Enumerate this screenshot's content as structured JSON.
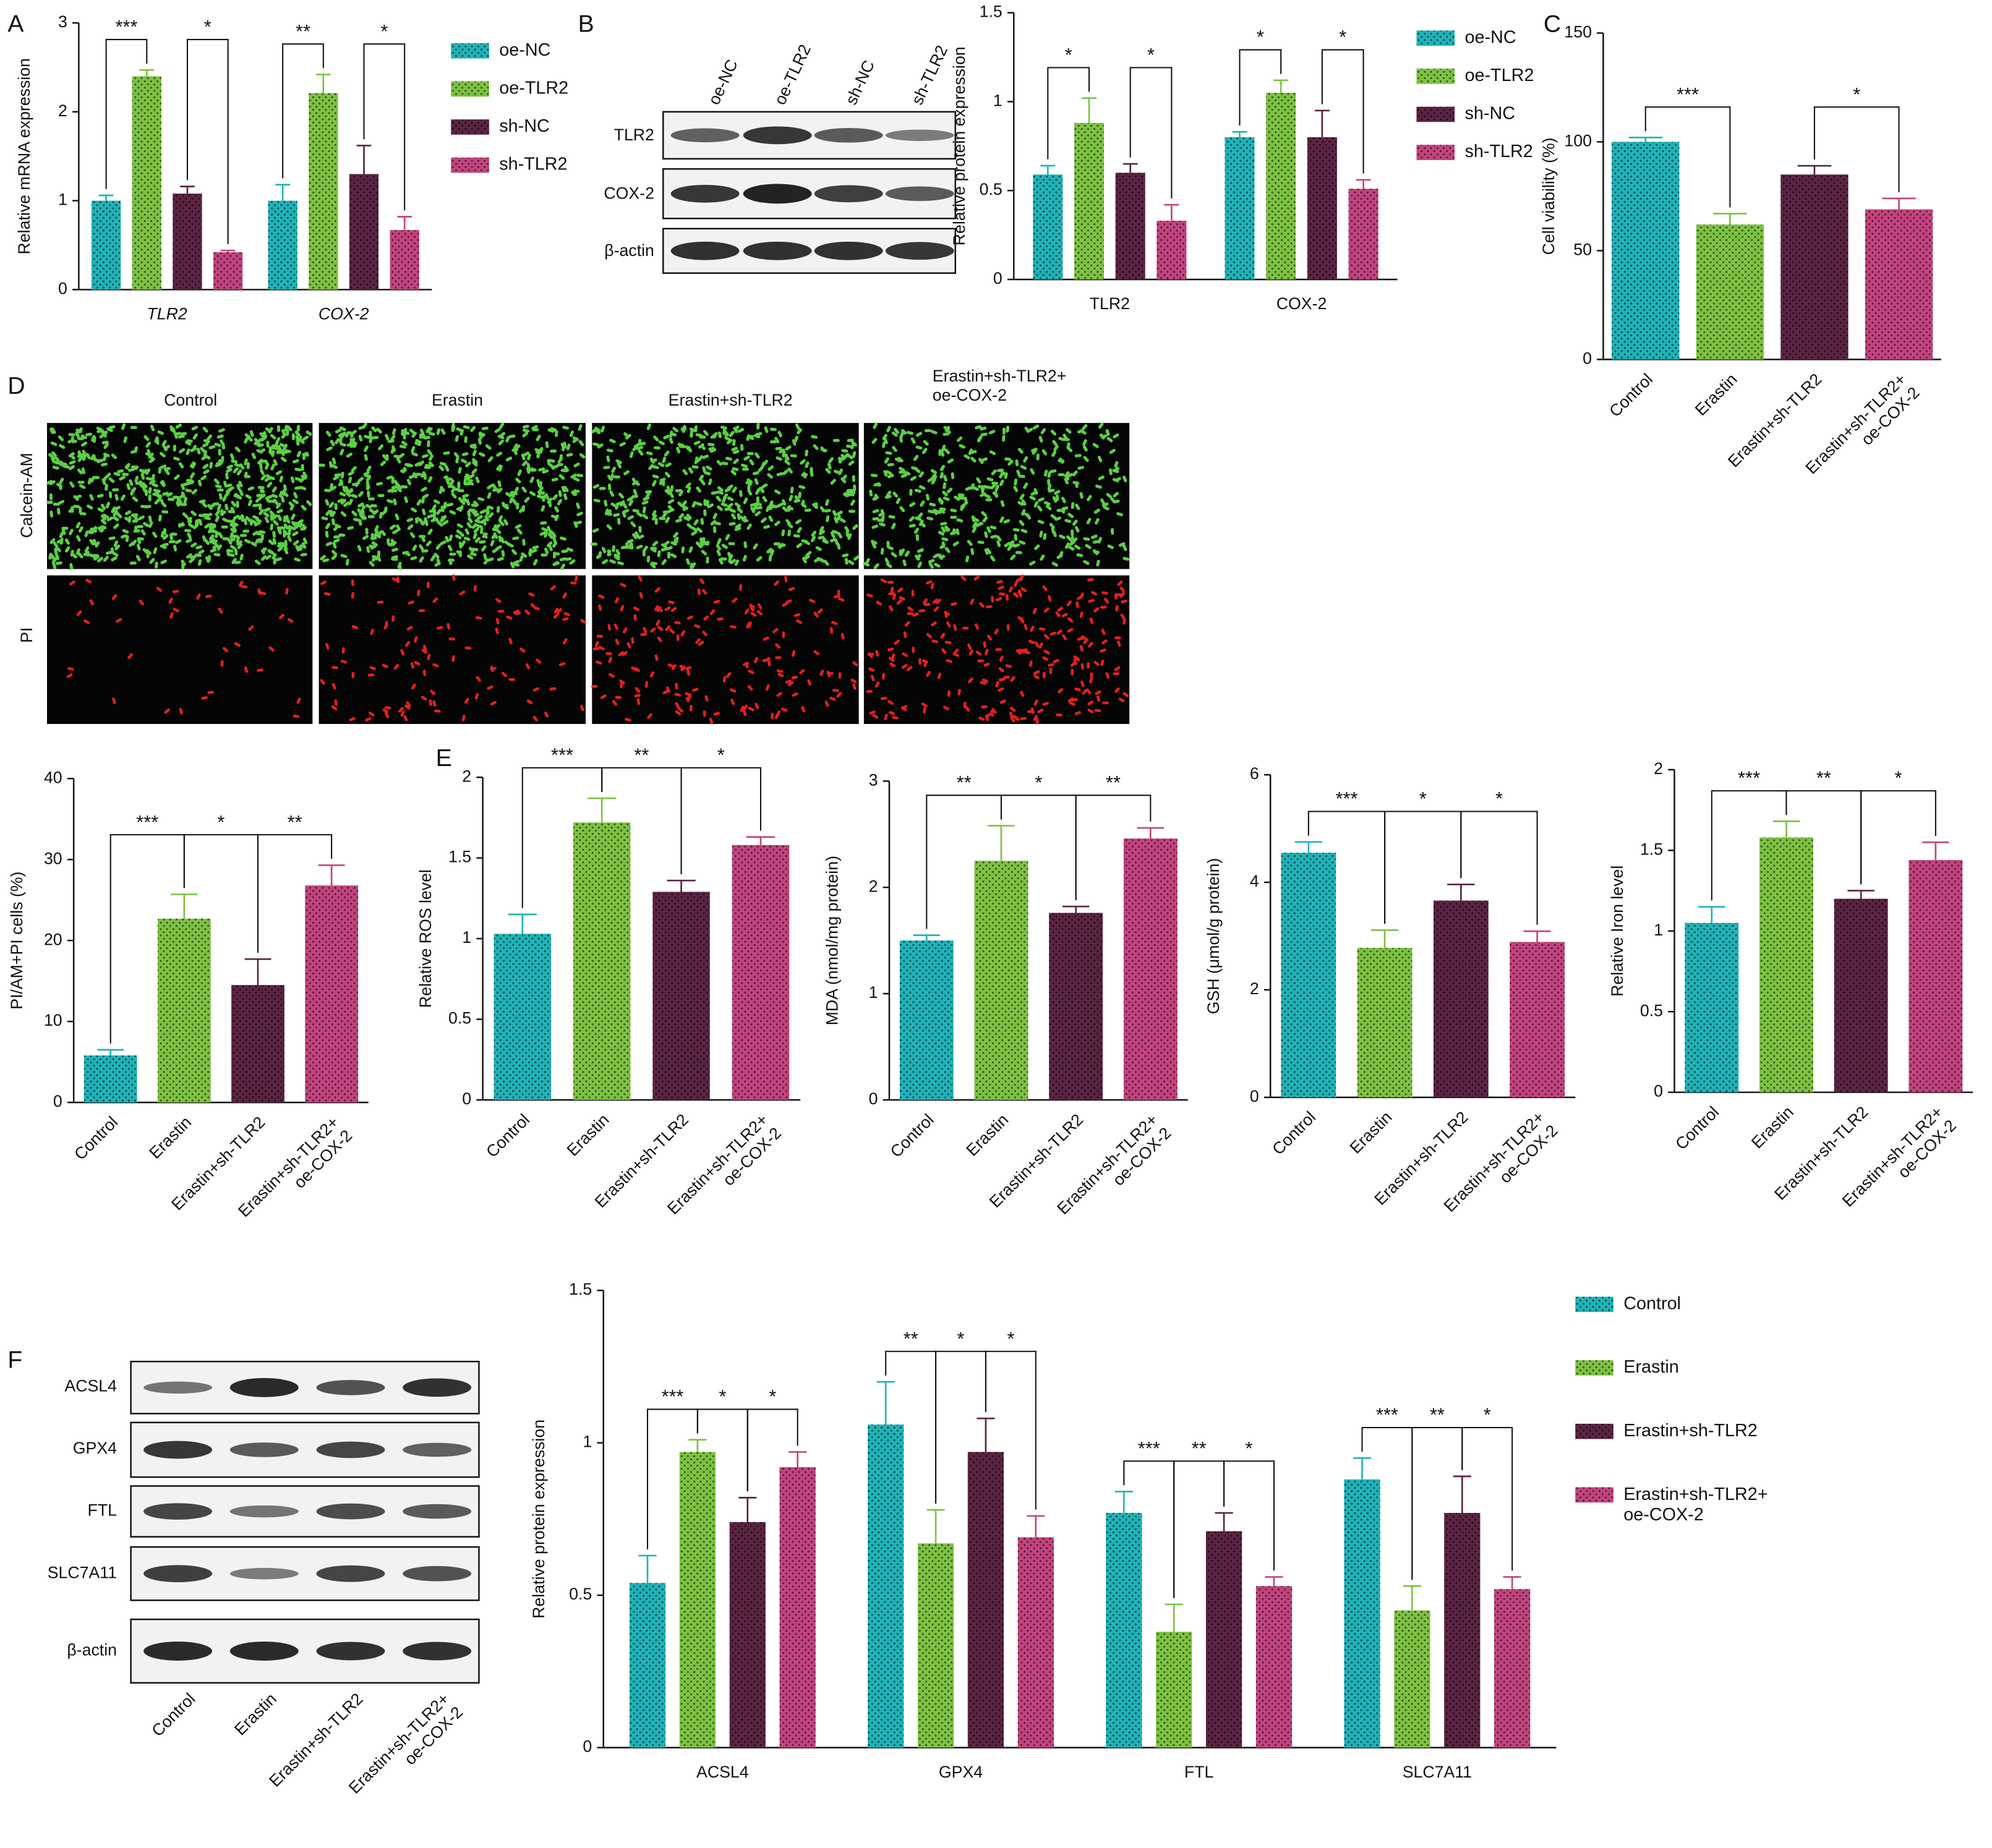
{
  "panel_labels": [
    "A",
    "B",
    "C",
    "D",
    "E",
    "F"
  ],
  "blot_b": {
    "lanes": [
      "oe-NC",
      "oe-TLR2",
      "sh-NC",
      "sh-TLR2"
    ],
    "rows": [
      "TLR2",
      "COX-2",
      "β-actin"
    ]
  },
  "images_d": {
    "columns": [
      "Control",
      "Erastin",
      "Erastin+sh-TLR2",
      "Erastin+sh-TLR2+\noe-COX-2"
    ],
    "rows": [
      "Calcein-AM",
      "PI"
    ]
  },
  "blot_f": {
    "lanes": [
      "Control",
      "Erastin",
      "Erastin+sh-TLR2",
      "Erastin+sh-TLR2+\noe-COX-2"
    ],
    "rows": [
      "ACSL4",
      "GPX4",
      "FTL",
      "SLC7A11",
      "β-actin"
    ]
  },
  "chart_data": [
    {
      "type": "bar",
      "y_label": "Relative mRNA expression",
      "categories": [
        "TLR2",
        "COX-2"
      ],
      "italic_categories": true,
      "series": [
        {
          "name": "oe-NC",
          "color": "#1fb3b8",
          "values": [
            1.0,
            1.0
          ],
          "errors": [
            0.06,
            0.18
          ]
        },
        {
          "name": "oe-TLR2",
          "color": "#7dc242",
          "values": [
            2.4,
            2.21
          ],
          "errors": [
            0.07,
            0.21
          ]
        },
        {
          "name": "sh-NC",
          "color": "#5a2442",
          "values": [
            1.08,
            1.3
          ],
          "errors": [
            0.08,
            0.32
          ]
        },
        {
          "name": "sh-TLR2",
          "color": "#c2437f",
          "values": [
            0.42,
            0.67
          ],
          "errors": [
            0.02,
            0.15
          ]
        }
      ],
      "ylim": [
        0,
        3
      ],
      "yticks": [
        0,
        1,
        2,
        3
      ],
      "comparisons": [
        {
          "category": 0,
          "from": 0,
          "to": 1,
          "label": "***"
        },
        {
          "category": 0,
          "from": 2,
          "to": 3,
          "label": "*"
        },
        {
          "category": 1,
          "from": 0,
          "to": 1,
          "label": "**"
        },
        {
          "category": 1,
          "from": 2,
          "to": 3,
          "label": "*"
        }
      ]
    },
    {
      "type": "bar",
      "y_label": "Relative protein expression",
      "categories": [
        "TLR2",
        "COX-2"
      ],
      "series": [
        {
          "name": "oe-NC",
          "color": "#1fb3b8",
          "values": [
            0.59,
            0.8
          ],
          "errors": [
            0.05,
            0.03
          ]
        },
        {
          "name": "oe-TLR2",
          "color": "#7dc242",
          "values": [
            0.88,
            1.05
          ],
          "errors": [
            0.14,
            0.07
          ]
        },
        {
          "name": "sh-NC",
          "color": "#5a2442",
          "values": [
            0.6,
            0.8
          ],
          "errors": [
            0.05,
            0.15
          ]
        },
        {
          "name": "sh-TLR2",
          "color": "#c2437f",
          "values": [
            0.33,
            0.51
          ],
          "errors": [
            0.09,
            0.05
          ]
        }
      ],
      "ylim": [
        0,
        1.5
      ],
      "yticks": [
        0,
        0.5,
        1,
        1.5
      ],
      "comparisons": [
        {
          "category": 0,
          "from": 0,
          "to": 1,
          "label": "*"
        },
        {
          "category": 0,
          "from": 2,
          "to": 3,
          "label": "*"
        },
        {
          "category": 1,
          "from": 0,
          "to": 1,
          "label": "*"
        },
        {
          "category": 1,
          "from": 2,
          "to": 3,
          "label": "*"
        }
      ]
    },
    {
      "type": "bar",
      "y_label": "Cell viability (%)",
      "categories": [
        "Control",
        "Erastin",
        "Erastin+sh-TLR2",
        "Erastin+sh-TLR2+\noe-COX-2"
      ],
      "values": [
        100,
        62,
        85,
        69
      ],
      "errors": [
        2,
        5,
        4,
        5
      ],
      "colors": [
        "#1fb3b8",
        "#7dc242",
        "#5a2442",
        "#c2437f"
      ],
      "ylim": [
        0,
        150
      ],
      "yticks": [
        0,
        50,
        100,
        150
      ],
      "comparisons": [
        {
          "from": 0,
          "to": 1,
          "label": "***"
        },
        {
          "from": 2,
          "to": 3,
          "label": "*"
        }
      ]
    },
    {
      "type": "bar",
      "y_label": "PI/AM+PI cells (%)",
      "categories": [
        "Control",
        "Erastin",
        "Erastin+sh-TLR2",
        "Erastin+sh-TLR2+\noe-COX-2"
      ],
      "values": [
        5.8,
        22.7,
        14.5,
        26.8
      ],
      "errors": [
        0.7,
        3,
        3.2,
        2.5
      ],
      "colors": [
        "#1fb3b8",
        "#7dc242",
        "#5a2442",
        "#c2437f"
      ],
      "ylim": [
        0,
        40
      ],
      "yticks": [
        0,
        10,
        20,
        30,
        40
      ],
      "comparisons": [
        {
          "from": 0,
          "to": 1,
          "label": "***"
        },
        {
          "from": 1,
          "to": 2,
          "label": "*"
        },
        {
          "from": 2,
          "to": 3,
          "label": "**"
        }
      ]
    },
    {
      "type": "bar",
      "y_label": "Relative ROS level",
      "categories": [
        "Control",
        "Erastin",
        "Erastin+sh-TLR2",
        "Erastin+sh-TLR2+\noe-COX-2"
      ],
      "values": [
        1.03,
        1.72,
        1.29,
        1.58
      ],
      "errors": [
        0.12,
        0.15,
        0.07,
        0.05
      ],
      "colors": [
        "#1fb3b8",
        "#7dc242",
        "#5a2442",
        "#c2437f"
      ],
      "ylim": [
        0,
        2
      ],
      "yticks": [
        0,
        0.5,
        1,
        1.5,
        2
      ],
      "comparisons": [
        {
          "from": 0,
          "to": 1,
          "label": "***"
        },
        {
          "from": 1,
          "to": 2,
          "label": "**"
        },
        {
          "from": 2,
          "to": 3,
          "label": "*"
        }
      ]
    },
    {
      "type": "bar",
      "y_label": "MDA (nmol/mg protein)",
      "categories": [
        "Control",
        "Erastin",
        "Erastin+sh-TLR2",
        "Erastin+sh-TLR2+\noe-COX-2"
      ],
      "values": [
        1.5,
        2.25,
        1.76,
        2.46
      ],
      "errors": [
        0.05,
        0.33,
        0.06,
        0.1
      ],
      "colors": [
        "#1fb3b8",
        "#7dc242",
        "#5a2442",
        "#c2437f"
      ],
      "ylim": [
        0,
        3
      ],
      "yticks": [
        0,
        1,
        2,
        3
      ],
      "comparisons": [
        {
          "from": 0,
          "to": 1,
          "label": "**"
        },
        {
          "from": 1,
          "to": 2,
          "label": "*"
        },
        {
          "from": 2,
          "to": 3,
          "label": "**"
        }
      ]
    },
    {
      "type": "bar",
      "y_label": "GSH (μmol/g protein)",
      "categories": [
        "Control",
        "Erastin",
        "Erastin+sh-TLR2",
        "Erastin+sh-TLR2+\noe-COX-2"
      ],
      "values": [
        4.55,
        2.78,
        3.66,
        2.89
      ],
      "errors": [
        0.2,
        0.33,
        0.3,
        0.2
      ],
      "colors": [
        "#1fb3b8",
        "#7dc242",
        "#5a2442",
        "#c2437f"
      ],
      "ylim": [
        0,
        6
      ],
      "yticks": [
        0,
        2,
        4,
        6
      ],
      "comparisons": [
        {
          "from": 0,
          "to": 1,
          "label": "***"
        },
        {
          "from": 1,
          "to": 2,
          "label": "*"
        },
        {
          "from": 2,
          "to": 3,
          "label": "*"
        }
      ]
    },
    {
      "type": "bar",
      "y_label": "Relative Iron level",
      "categories": [
        "Control",
        "Erastin",
        "Erastin+sh-TLR2",
        "Erastin+sh-TLR2+\noe-COX-2"
      ],
      "values": [
        1.05,
        1.58,
        1.2,
        1.44
      ],
      "errors": [
        0.1,
        0.1,
        0.05,
        0.11
      ],
      "colors": [
        "#1fb3b8",
        "#7dc242",
        "#5a2442",
        "#c2437f"
      ],
      "ylim": [
        0,
        2
      ],
      "yticks": [
        0,
        0.5,
        1,
        1.5,
        2
      ],
      "comparisons": [
        {
          "from": 0,
          "to": 1,
          "label": "***"
        },
        {
          "from": 1,
          "to": 2,
          "label": "**"
        },
        {
          "from": 2,
          "to": 3,
          "label": "*"
        }
      ]
    },
    {
      "type": "bar",
      "y_label": "Relative protein expression",
      "categories": [
        "ACSL4",
        "GPX4",
        "FTL",
        "SLC7A11"
      ],
      "series": [
        {
          "name": "Control",
          "color": "#1fb3b8",
          "values": [
            0.54,
            1.06,
            0.77,
            0.88
          ],
          "errors": [
            0.09,
            0.14,
            0.07,
            0.07
          ]
        },
        {
          "name": "Erastin",
          "color": "#7dc242",
          "values": [
            0.97,
            0.67,
            0.38,
            0.45
          ],
          "errors": [
            0.04,
            0.11,
            0.09,
            0.08
          ]
        },
        {
          "name": "Erastin+sh-TLR2",
          "color": "#5a2442",
          "values": [
            0.74,
            0.97,
            0.71,
            0.77
          ],
          "errors": [
            0.08,
            0.11,
            0.06,
            0.12
          ]
        },
        {
          "name": "Erastin+sh-TLR2+\noe-COX-2",
          "color": "#c2437f",
          "values": [
            0.92,
            0.69,
            0.53,
            0.52
          ],
          "errors": [
            0.05,
            0.07,
            0.03,
            0.04
          ]
        }
      ],
      "ylim": [
        0,
        1.5
      ],
      "yticks": [
        0,
        0.5,
        1,
        1.5
      ],
      "comparisons": [
        {
          "category": 0,
          "from": 0,
          "to": 1,
          "label": "***"
        },
        {
          "category": 0,
          "from": 1,
          "to": 2,
          "label": "*"
        },
        {
          "category": 0,
          "from": 2,
          "to": 3,
          "label": "*"
        },
        {
          "category": 1,
          "from": 0,
          "to": 1,
          "label": "**"
        },
        {
          "category": 1,
          "from": 1,
          "to": 2,
          "label": "*"
        },
        {
          "category": 1,
          "from": 2,
          "to": 3,
          "label": "*"
        },
        {
          "category": 2,
          "from": 0,
          "to": 1,
          "label": "***"
        },
        {
          "category": 2,
          "from": 1,
          "to": 2,
          "label": "**"
        },
        {
          "category": 2,
          "from": 2,
          "to": 3,
          "label": "*"
        },
        {
          "category": 3,
          "from": 0,
          "to": 1,
          "label": "***"
        },
        {
          "category": 3,
          "from": 1,
          "to": 2,
          "label": "**"
        },
        {
          "category": 3,
          "from": 2,
          "to": 3,
          "label": "*"
        }
      ]
    }
  ]
}
